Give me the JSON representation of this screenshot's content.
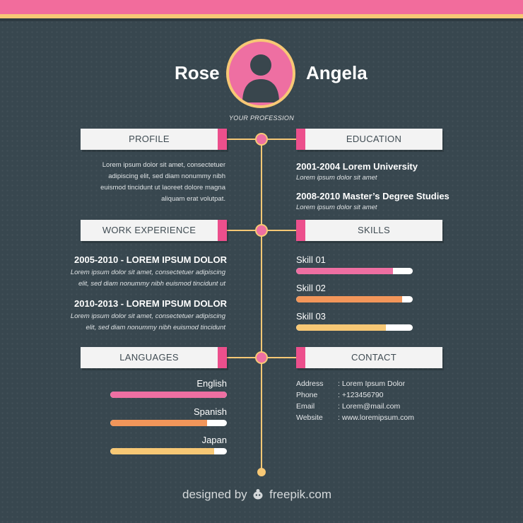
{
  "colors": {
    "background": "#38474f",
    "pink": "#ee6fa2",
    "accent_pink": "#ec4f8c",
    "yellow": "#f7c875",
    "orange": "#f2965a",
    "header_bg": "#f3f3f3"
  },
  "name": {
    "first": "Rose",
    "last": "Angela"
  },
  "profession": "YOUR PROFESSION",
  "sections": {
    "profile": "PROFILE",
    "education": "EDUCATION",
    "work": "WORK EXPERIENCE",
    "skills": "SKILLS",
    "languages": "LANGUAGES",
    "contact": "CONTACT"
  },
  "profile": {
    "lines": [
      "Lorem ipsum dolor sit amet, consectetuer",
      "adipiscing elit, sed diam nonummy nibh",
      "euismod tincidunt ut laoreet dolore magna",
      "aliquam erat volutpat."
    ]
  },
  "education": [
    {
      "title": "2001-2004 Lorem University",
      "desc": "Lorem ipsum dolor sit amet"
    },
    {
      "title": "2008-2010 Master’s Degree Studies",
      "desc": "Lorem ipsum dolor sit amet"
    }
  ],
  "work": [
    {
      "title": "2005-2010 - LOREM IPSUM DOLOR",
      "line1": "Lorem ipsum dolor sit amet, consectetuer adipiscing",
      "line2": "elit, sed diam nonummy nibh euismod tincidunt ut"
    },
    {
      "title": "2010-2013 - LOREM IPSUM DOLOR",
      "line1": "Lorem ipsum dolor sit amet, consectetuer adipiscing",
      "line2": "elit, sed diam nonummy nibh euismod tincidunt"
    }
  ],
  "skills": [
    {
      "label": "Skill 01",
      "level": 0.83,
      "color": "#ee6fa2"
    },
    {
      "label": "Skill 02",
      "level": 0.91,
      "color": "#f2965a"
    },
    {
      "label": "Skill 03",
      "level": 0.77,
      "color": "#f7c875"
    }
  ],
  "languages": [
    {
      "label": "English",
      "level": 1.0,
      "color": "#ee6fa2"
    },
    {
      "label": "Spanish",
      "level": 0.83,
      "color": "#f2965a"
    },
    {
      "label": "Japan",
      "level": 0.89,
      "color": "#f7c875"
    }
  ],
  "contact": [
    {
      "key": "Address",
      "value": ": Lorem Ipsum Dolor"
    },
    {
      "key": "Phone",
      "value": ": +123456790"
    },
    {
      "key": "Email",
      "value": ": Lorem@mail.com"
    },
    {
      "key": "Website",
      "value": ": www.loremipsum.com"
    }
  ],
  "footer": {
    "prefix": "designed by",
    "brand": "freepik.com",
    "icon": "freepik-mascot-icon"
  }
}
